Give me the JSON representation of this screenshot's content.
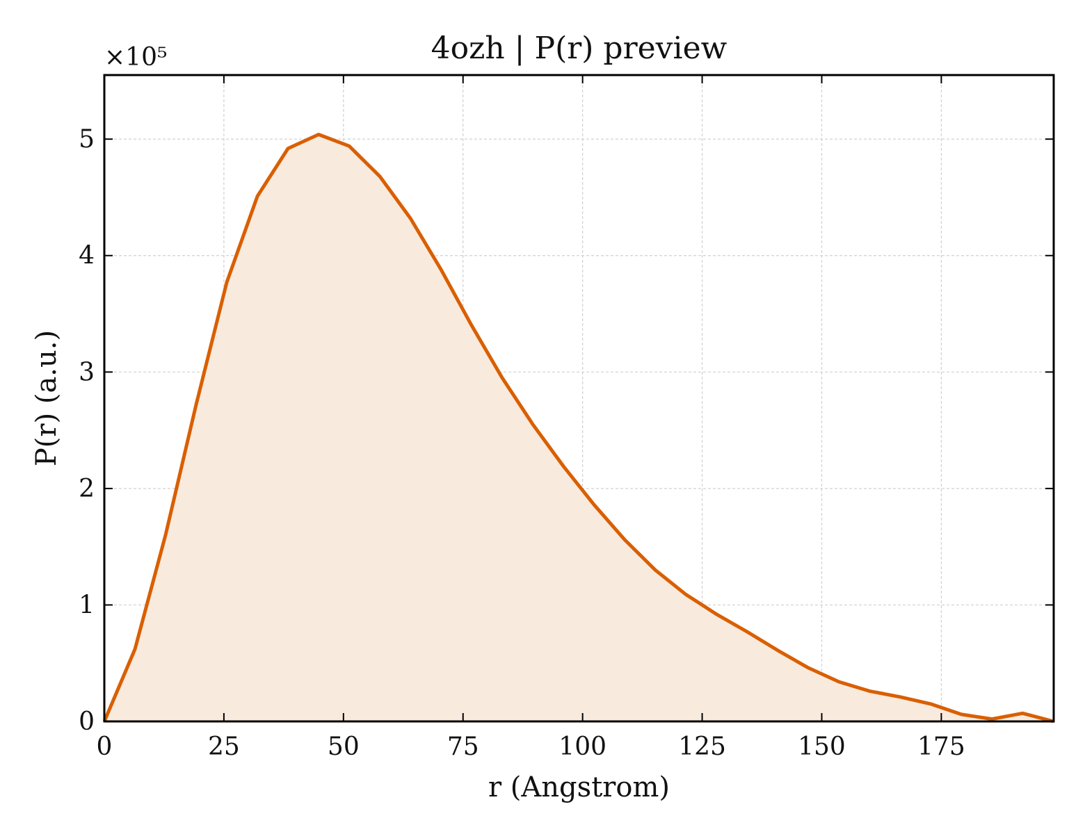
{
  "chart_data": {
    "type": "area",
    "title": "4ozh | P(r) preview",
    "xlabel": "r (Angstrom)",
    "ylabel": "P(r) (a.u.)",
    "y_offset_label": "×10⁵",
    "xlim": [
      0,
      198.5
    ],
    "ylim": [
      0,
      5.55
    ],
    "y_scale_factor": 100000,
    "x_ticks": [
      0,
      25,
      50,
      75,
      100,
      125,
      150,
      175
    ],
    "y_ticks": [
      0,
      1,
      2,
      3,
      4,
      5
    ],
    "grid": true,
    "series": [
      {
        "x": [
          0,
          6.4,
          12.8,
          19.2,
          25.6,
          32.0,
          38.4,
          44.8,
          51.2,
          57.6,
          64.0,
          70.4,
          76.8,
          83.2,
          89.6,
          96.0,
          102.4,
          108.8,
          115.2,
          121.6,
          128.0,
          134.4,
          140.8,
          147.2,
          153.6,
          160.0,
          166.4,
          172.8,
          179.2,
          185.6,
          192.0,
          198.5
        ],
        "y": [
          0.0,
          0.62,
          1.6,
          2.72,
          3.77,
          4.51,
          4.92,
          5.04,
          4.94,
          4.68,
          4.32,
          3.88,
          3.4,
          2.95,
          2.55,
          2.19,
          1.86,
          1.56,
          1.3,
          1.09,
          0.92,
          0.77,
          0.61,
          0.46,
          0.34,
          0.26,
          0.21,
          0.15,
          0.06,
          0.02,
          0.07,
          0.0
        ]
      }
    ],
    "colors": {
      "line": "#d95f02",
      "fill": "#f9eade",
      "grid": "#d0d0d0",
      "axes": "#000000"
    }
  }
}
